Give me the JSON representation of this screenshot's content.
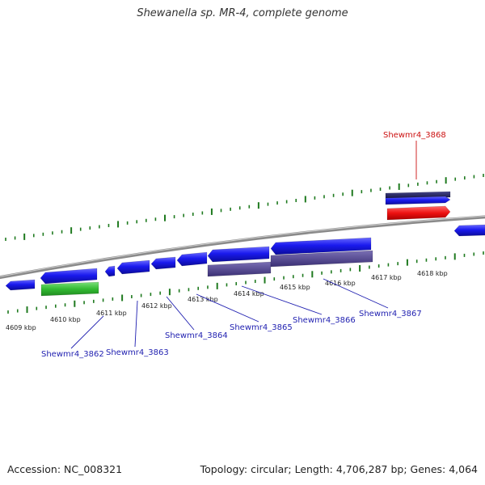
{
  "title": "Shewanella sp. MR-4, complete genome",
  "footer": {
    "accession": "Accession: NC_008321",
    "summary": "Topology: circular; Length: 4,706,287 bp; Genes: 4,064"
  },
  "colors": {
    "backbone": "#8a8a8a",
    "tick": "#1f7a1f",
    "gene_blue": "#1a1aee",
    "gene_navy": "#222266",
    "gene_purple": "#4a3f8a",
    "gene_green": "#33bb33",
    "gene_red": "#ee1111",
    "label_blue": "#1f1fb0",
    "label_red": "#cc1111"
  },
  "tick_labels": [
    "4609 kbp",
    "4610 kbp",
    "4611 kbp",
    "4612 kbp",
    "4613 kbp",
    "4614 kbp",
    "4615 kbp",
    "4616 kbp",
    "4617 kbp",
    "4618 kbp"
  ],
  "gene_labels": [
    {
      "text": "Shewmr4_3862",
      "color": "label_blue"
    },
    {
      "text": "Shewmr4_3863",
      "color": "label_blue"
    },
    {
      "text": "Shewmr4_3864",
      "color": "label_blue"
    },
    {
      "text": "Shewmr4_3865",
      "color": "label_blue"
    },
    {
      "text": "Shewmr4_3866",
      "color": "label_blue"
    },
    {
      "text": "Shewmr4_3867",
      "color": "label_blue"
    },
    {
      "text": "Shewmr4_3868",
      "color": "label_red"
    }
  ]
}
